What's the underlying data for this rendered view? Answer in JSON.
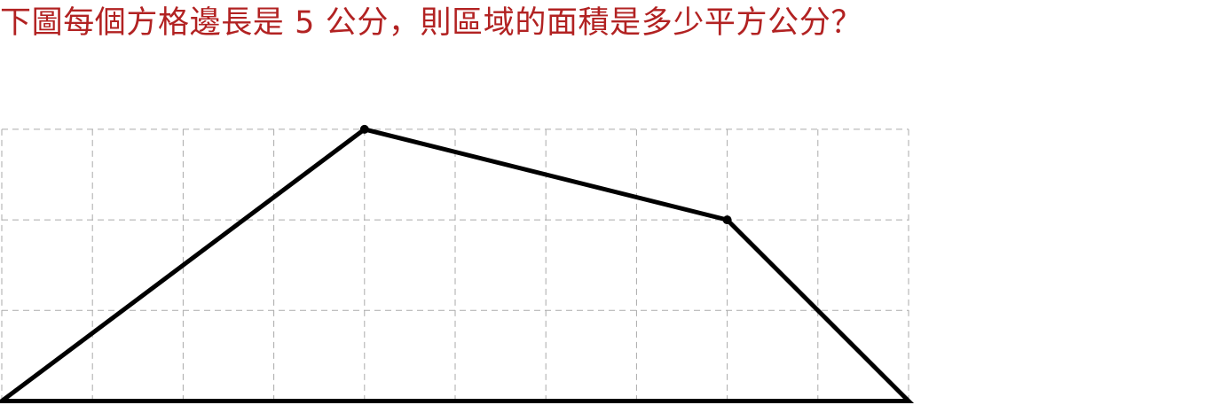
{
  "question": {
    "text": "下圖每個方格邊長是 5 公分，則區域的面積是多少平方公分？",
    "color": "#b22222"
  },
  "grid": {
    "columns": 10,
    "rows": 3,
    "line_color": "#aaaaaa",
    "line_style": "dashed"
  },
  "polygon": {
    "vertices": [
      {
        "col": 0,
        "row": 0
      },
      {
        "col": 4,
        "row": 3
      },
      {
        "col": 8,
        "row": 2
      },
      {
        "col": 10,
        "row": 0
      }
    ],
    "stroke_color": "#000000"
  }
}
